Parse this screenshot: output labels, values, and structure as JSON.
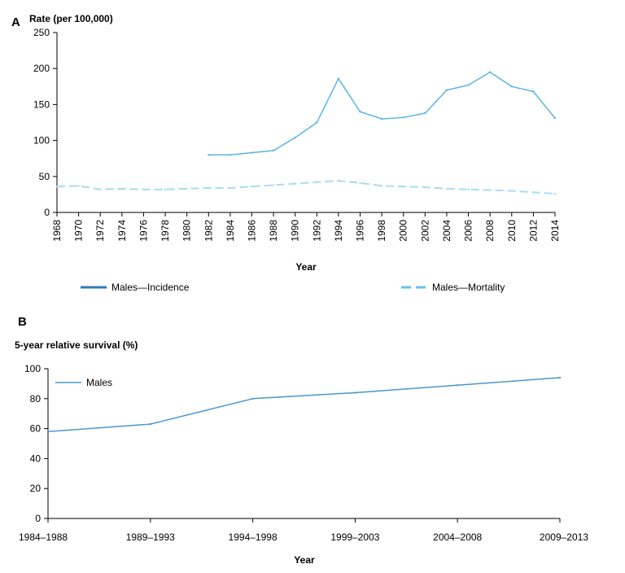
{
  "chart_data": [
    {
      "panel_label": "A",
      "type": "line",
      "ylabel": "Rate (per 100,000)",
      "xlabel": "Year",
      "ylim": [
        0,
        250
      ],
      "yticks": [
        0,
        50,
        100,
        150,
        200,
        250
      ],
      "xlim": [
        1968,
        2014
      ],
      "xticks": [
        "1968",
        "1970",
        "1972",
        "1974",
        "1976",
        "1978",
        "1980",
        "1982",
        "1984",
        "1986",
        "1988",
        "1990",
        "1992",
        "1994",
        "1996",
        "1998",
        "2000",
        "2002",
        "2004",
        "2006",
        "2008",
        "2010",
        "2012",
        "2014"
      ],
      "grid": false,
      "legend_position": "bottom",
      "series": [
        {
          "name": "Males—Incidence",
          "style": "solid",
          "color": "#5bb5e3",
          "legend_color": "#2e7bb5",
          "x": [
            1982,
            1984,
            1986,
            1988,
            1990,
            1992,
            1994,
            1996,
            1998,
            2000,
            2002,
            2004,
            2006,
            2008,
            2010,
            2012,
            2014
          ],
          "y": [
            80,
            80,
            83,
            86,
            104,
            125,
            186,
            140,
            130,
            132,
            138,
            170,
            177,
            195,
            175,
            168,
            131
          ]
        },
        {
          "name": "Males—Mortality",
          "style": "dashed",
          "color": "#a6dcf6",
          "legend_color": "#5fc6f0",
          "x": [
            1968,
            1970,
            1972,
            1974,
            1976,
            1978,
            1980,
            1982,
            1984,
            1986,
            1988,
            1990,
            1992,
            1994,
            1996,
            1998,
            2000,
            2002,
            2004,
            2006,
            2008,
            2010,
            2012,
            2014
          ],
          "y": [
            36,
            37,
            32,
            33,
            32,
            32,
            33,
            34,
            34,
            36,
            38,
            40,
            42,
            44,
            41,
            37,
            36,
            35,
            33,
            32,
            31,
            30,
            28,
            26
          ]
        }
      ]
    },
    {
      "panel_label": "B",
      "type": "line",
      "ylabel": "5-year relative survival (%)",
      "xlabel": "Year",
      "ylim": [
        0,
        100
      ],
      "yticks": [
        0,
        20,
        40,
        60,
        80,
        100
      ],
      "categories": [
        "1984–1988",
        "1989–1993",
        "1994–1998",
        "1999–2003",
        "2004–2008",
        "2009–2013"
      ],
      "grid": false,
      "legend_position": "top-left",
      "series": [
        {
          "name": "Males",
          "color": "#4a97cc",
          "values": [
            58,
            63,
            80,
            84,
            89,
            94
          ]
        }
      ]
    }
  ]
}
